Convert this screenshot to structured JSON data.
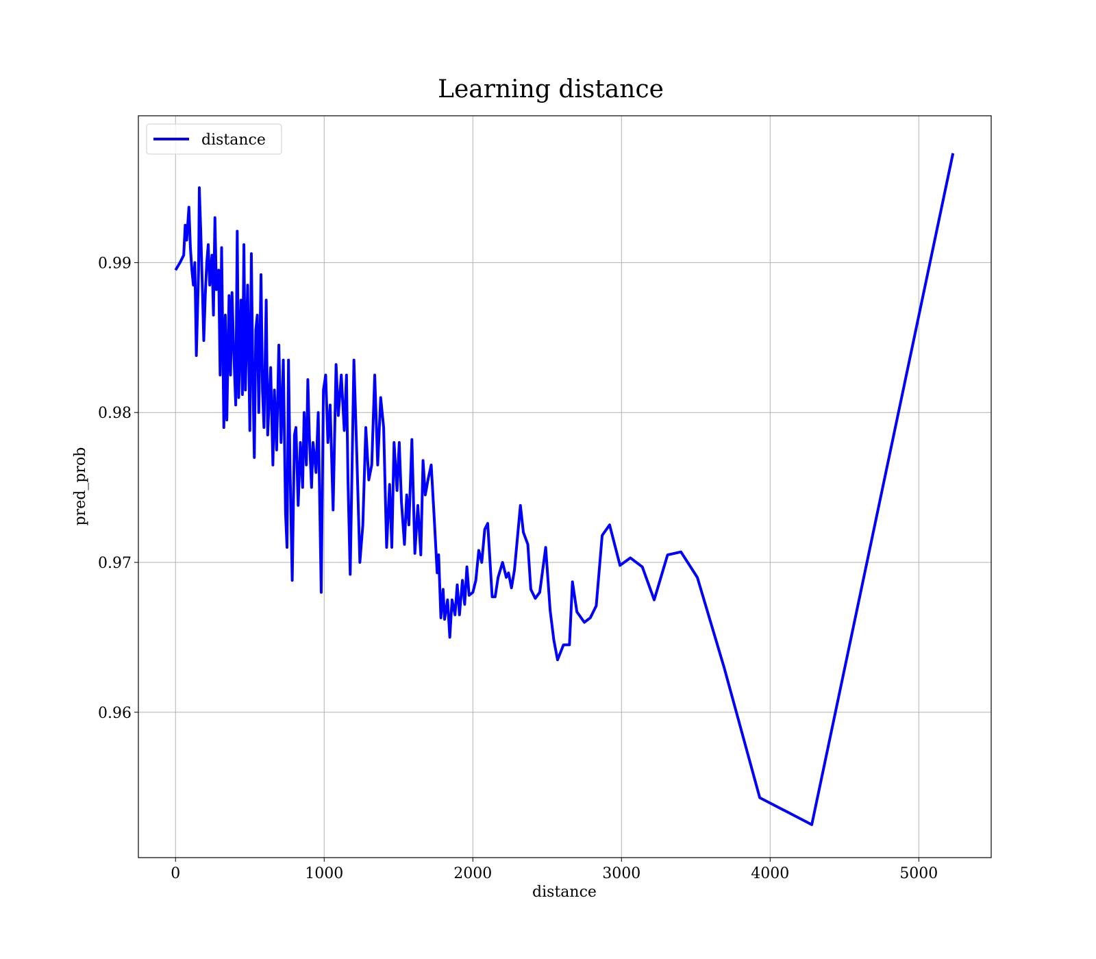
{
  "chart_data": {
    "type": "line",
    "title": "Learning distance",
    "xlabel": "distance",
    "ylabel": "pred_prob",
    "legend": "upper left",
    "grid": true,
    "xlim": [
      -250,
      5487
    ],
    "xticks": [
      0,
      1000,
      2000,
      3000,
      4000,
      5000
    ],
    "ylim": [
      0.9503,
      0.9998
    ],
    "yticks": [
      0.96,
      0.97,
      0.98,
      0.99
    ],
    "x": [
      0,
      30,
      55,
      65,
      75,
      90,
      100,
      110,
      120,
      130,
      140,
      155,
      160,
      170,
      180,
      190,
      200,
      210,
      220,
      230,
      245,
      255,
      265,
      275,
      290,
      300,
      310,
      325,
      335,
      345,
      360,
      370,
      380,
      390,
      405,
      415,
      425,
      440,
      450,
      460,
      470,
      485,
      500,
      510,
      520,
      530,
      540,
      550,
      560,
      575,
      585,
      595,
      610,
      620,
      640,
      655,
      665,
      680,
      695,
      710,
      725,
      740,
      750,
      760,
      770,
      785,
      800,
      810,
      825,
      840,
      855,
      865,
      880,
      890,
      900,
      915,
      925,
      945,
      960,
      980,
      995,
      1010,
      1025,
      1040,
      1060,
      1080,
      1095,
      1115,
      1135,
      1150,
      1160,
      1175,
      1200,
      1220,
      1240,
      1260,
      1280,
      1300,
      1320,
      1340,
      1360,
      1380,
      1400,
      1420,
      1440,
      1455,
      1470,
      1490,
      1505,
      1520,
      1540,
      1555,
      1570,
      1590,
      1610,
      1630,
      1650,
      1665,
      1680,
      1700,
      1720,
      1740,
      1760,
      1770,
      1785,
      1800,
      1810,
      1830,
      1845,
      1860,
      1880,
      1895,
      1910,
      1930,
      1945,
      1960,
      1975,
      2000,
      2020,
      2040,
      2060,
      2080,
      2100,
      2130,
      2150,
      2170,
      2200,
      2225,
      2240,
      2260,
      2280,
      2320,
      2340,
      2370,
      2390,
      2420,
      2450,
      2490,
      2520,
      2545,
      2570,
      2610,
      2650,
      2670,
      2700,
      2750,
      2790,
      2830,
      2870,
      2920,
      2990,
      3060,
      3140,
      3220,
      3310,
      3400,
      3510,
      3690,
      3930,
      4280,
      5230
    ],
    "series": [
      {
        "name": "distance",
        "color": "#0000ff",
        "values": [
          0.9895,
          0.99,
          0.9905,
          0.9925,
          0.9915,
          0.9937,
          0.991,
          0.9895,
          0.9885,
          0.99,
          0.9838,
          0.9895,
          0.995,
          0.992,
          0.9885,
          0.9848,
          0.9878,
          0.99,
          0.9912,
          0.9885,
          0.9905,
          0.9865,
          0.993,
          0.9882,
          0.9895,
          0.9825,
          0.991,
          0.979,
          0.9865,
          0.9795,
          0.9878,
          0.9825,
          0.988,
          0.9845,
          0.9805,
          0.9921,
          0.981,
          0.9875,
          0.9812,
          0.9912,
          0.9815,
          0.9885,
          0.9788,
          0.9906,
          0.9825,
          0.977,
          0.9855,
          0.9865,
          0.98,
          0.9892,
          0.9815,
          0.979,
          0.9875,
          0.9785,
          0.983,
          0.9765,
          0.9815,
          0.9775,
          0.9845,
          0.978,
          0.9835,
          0.9733,
          0.971,
          0.9835,
          0.9765,
          0.9688,
          0.9785,
          0.979,
          0.9738,
          0.978,
          0.975,
          0.98,
          0.9765,
          0.9822,
          0.9785,
          0.975,
          0.978,
          0.976,
          0.98,
          0.968,
          0.9815,
          0.9825,
          0.978,
          0.9805,
          0.9735,
          0.9832,
          0.9798,
          0.9825,
          0.9788,
          0.9825,
          0.9755,
          0.9692,
          0.9835,
          0.977,
          0.97,
          0.9725,
          0.979,
          0.9755,
          0.9765,
          0.9825,
          0.9765,
          0.981,
          0.979,
          0.971,
          0.9752,
          0.971,
          0.978,
          0.9748,
          0.978,
          0.974,
          0.9712,
          0.9745,
          0.9725,
          0.9782,
          0.9706,
          0.9738,
          0.9705,
          0.9768,
          0.9745,
          0.9756,
          0.9765,
          0.973,
          0.9693,
          0.9705,
          0.9663,
          0.9682,
          0.9662,
          0.9675,
          0.965,
          0.9675,
          0.9665,
          0.9685,
          0.9665,
          0.9688,
          0.9672,
          0.9697,
          0.9678,
          0.968,
          0.9688,
          0.9708,
          0.97,
          0.9722,
          0.9726,
          0.9677,
          0.9677,
          0.969,
          0.97,
          0.969,
          0.9693,
          0.9683,
          0.9695,
          0.9738,
          0.972,
          0.9712,
          0.9682,
          0.9676,
          0.968,
          0.971,
          0.9668,
          0.9648,
          0.9635,
          0.9645,
          0.9645,
          0.9687,
          0.9667,
          0.966,
          0.9663,
          0.9671,
          0.9718,
          0.9725,
          0.9698,
          0.9703,
          0.9697,
          0.9675,
          0.9705,
          0.9707,
          0.969,
          0.963,
          0.9543,
          0.9525,
          0.9973
        ]
      }
    ]
  }
}
